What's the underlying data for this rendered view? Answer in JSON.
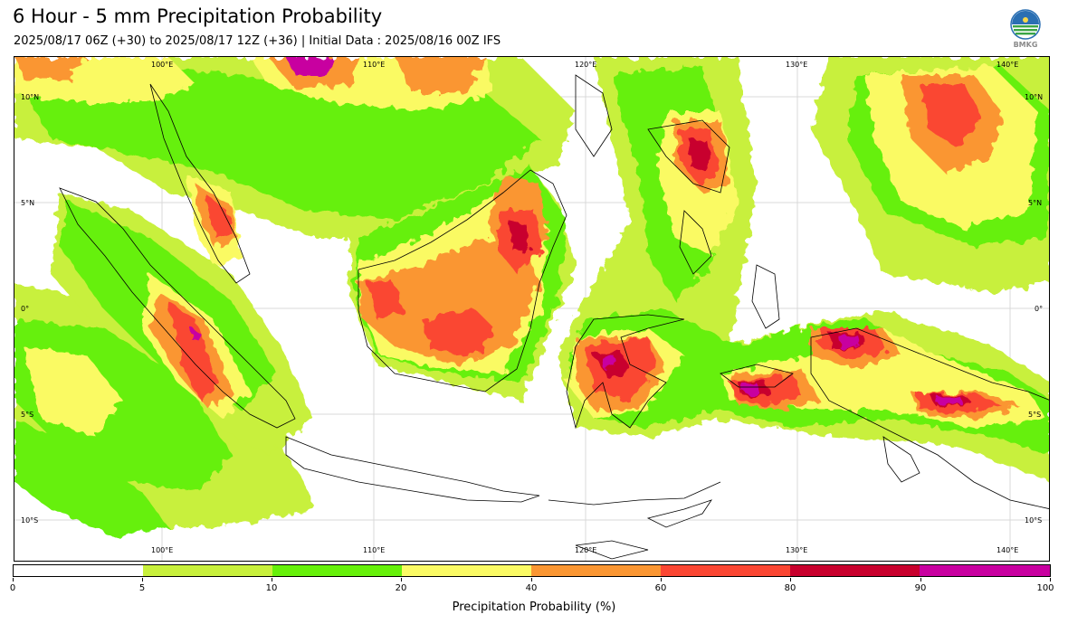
{
  "header": {
    "title": "6 Hour - 5 mm Precipitation Probability",
    "subtitle": "2025/08/17 06Z (+30) to 2025/08/17 12Z (+36) | Initial Data : 2025/08/16 00Z IFS",
    "logo_text": "BMKG"
  },
  "map": {
    "lon_ticks": [
      "100°E",
      "110°E",
      "120°E",
      "130°E",
      "140°E"
    ],
    "lat_ticks": [
      "10°N",
      "5°N",
      "0°",
      "5°S",
      "10°S"
    ],
    "colors": {
      "land_outline": "#000000",
      "grid": "#d9d9d9"
    },
    "shaded_classes": [
      {
        "range": "0-5",
        "color": "#ffffff"
      },
      {
        "range": "5-10",
        "color": "#c8f03c"
      },
      {
        "range": "10-20",
        "color": "#66f00a"
      },
      {
        "range": "20-40",
        "color": "#fafa64"
      },
      {
        "range": "40-60",
        "color": "#fa9632"
      },
      {
        "range": "60-80",
        "color": "#fa4632"
      },
      {
        "range": "80-90",
        "color": "#c8002d"
      },
      {
        "range": "90-100",
        "color": "#c800a0"
      }
    ]
  },
  "colorbar": {
    "label": "Precipitation Probability (%)",
    "boundaries": [
      "0",
      "5",
      "10",
      "20",
      "40",
      "60",
      "80",
      "90",
      "100"
    ],
    "colors": [
      "#ffffff",
      "#c8f03c",
      "#66f00a",
      "#fafa64",
      "#fa9632",
      "#fa4632",
      "#c8002d",
      "#c800a0"
    ]
  }
}
